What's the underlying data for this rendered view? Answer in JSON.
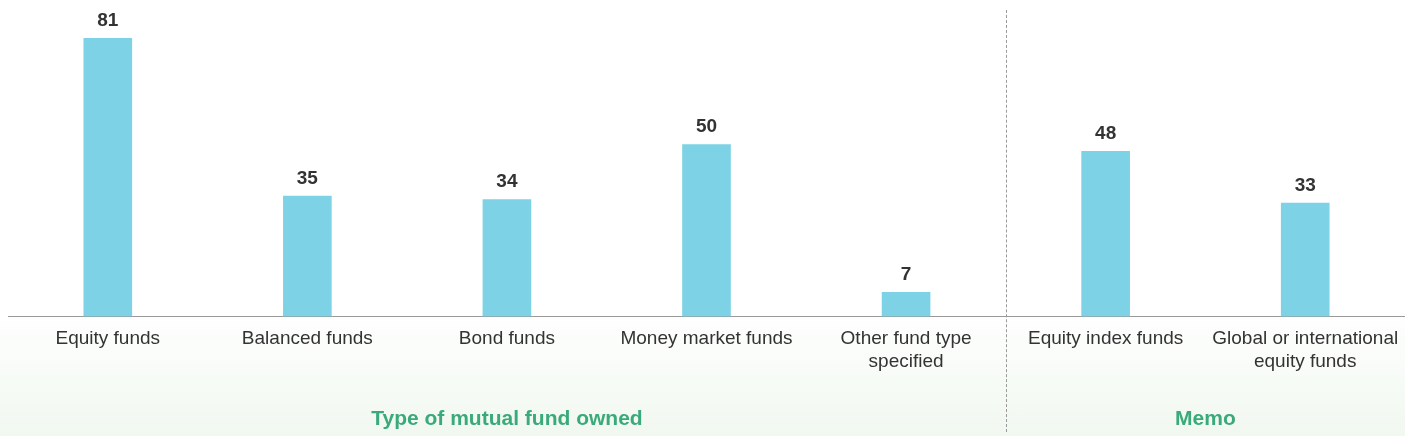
{
  "chart_data": {
    "type": "bar",
    "categories": [
      "Equity funds",
      "Balanced funds",
      "Bond funds",
      "Money market funds",
      "Other fund type specified",
      "Equity index funds",
      "Global or international equity funds"
    ],
    "values": [
      81,
      35,
      34,
      50,
      7,
      48,
      33
    ],
    "color": "#7dd3e5",
    "data_labels": true,
    "annotations": [
      "Type of mutual fund owned",
      "Memo"
    ]
  }
}
